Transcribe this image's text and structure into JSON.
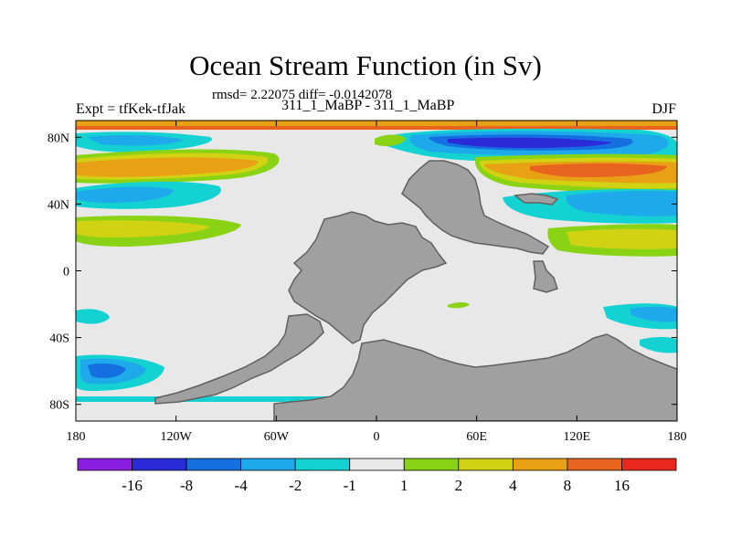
{
  "figure": {
    "title": "Ocean Stream Function (in Sv)",
    "stats": "rmsd= 2.22075 diff= -0.0142078",
    "left_label": "Expt = tfKek-tfJak",
    "center_label": "311_1_MaBP - 311_1_MaBP",
    "right_label": "DJF"
  },
  "chart_data": {
    "type": "heatmap",
    "projection": "cylindrical equidistant",
    "x_ticks": [
      "180",
      "120W",
      "60W",
      "0",
      "60E",
      "120E",
      "180"
    ],
    "y_ticks": [
      "80N",
      "40N",
      "0",
      "40S",
      "80S"
    ],
    "xlim": [
      -180,
      180
    ],
    "ylim": [
      -90,
      90
    ],
    "land_color": "#a0a0a0",
    "colorbar": {
      "levels": [
        "-16",
        "-8",
        "-4",
        "-2",
        "-1",
        "1",
        "2",
        "4",
        "8",
        "16"
      ],
      "colors": [
        "#8a1ee0",
        "#2a2ad8",
        "#1470e0",
        "#1eaaea",
        "#14d2d2",
        "#e8e8e8",
        "#8ad214",
        "#d2d214",
        "#e8a014",
        "#e8641e",
        "#e8281e"
      ]
    }
  }
}
